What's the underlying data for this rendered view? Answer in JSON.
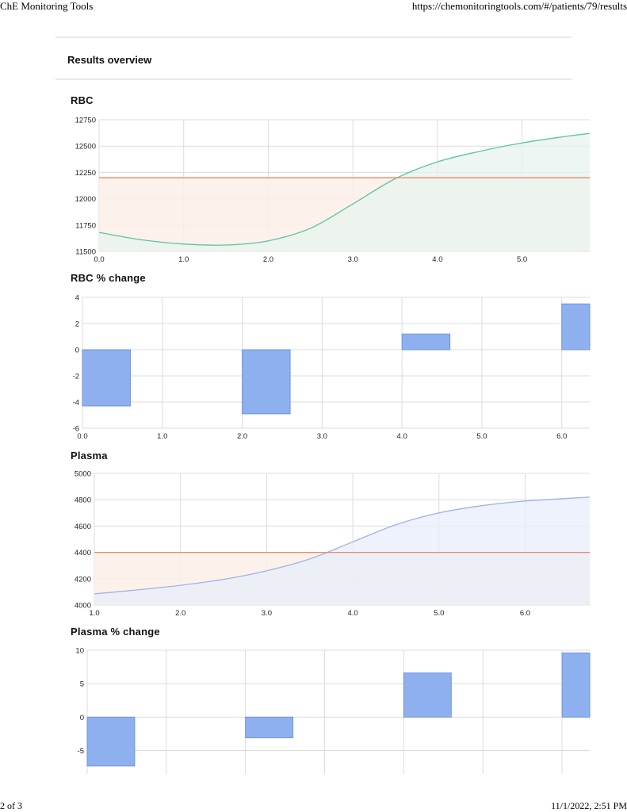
{
  "print_header": {
    "title": "ChE Monitoring Tools",
    "url": "https://chemonitoringtools.com/#/patients/79/results"
  },
  "print_footer": {
    "page": "2 of 3",
    "datetime": "11/1/2022, 2:51 PM"
  },
  "overview": {
    "title": "Results overview"
  },
  "charts": {
    "rbc": {
      "title": "RBC"
    },
    "rbc_change": {
      "title": "RBC % change"
    },
    "plasma": {
      "title": "Plasma"
    },
    "plasma_change": {
      "title": "Plasma % change"
    }
  },
  "colors": {
    "rbc_line": "#5cc4a4",
    "plasma_line": "#9fb2ea",
    "threshold_line": "#e9896b",
    "bar_fill": "#8fb0ef",
    "bar_stroke": "#6f93e6",
    "grid": "#dcdcdc"
  },
  "chart_data": [
    {
      "id": "rbc",
      "type": "area",
      "title": "RBC",
      "xlim": [
        0,
        5.8
      ],
      "ylim": [
        11500,
        12750
      ],
      "xticks": [
        "0.0",
        "1.0",
        "2.0",
        "3.0",
        "4.0",
        "5.0"
      ],
      "yticks": [
        "11500",
        "11750",
        "12000",
        "12250",
        "12500",
        "12750"
      ],
      "threshold": 12200,
      "series": [
        {
          "x": [
            0,
            0.5,
            1,
            1.5,
            2,
            2.5,
            3,
            3.5,
            4,
            4.5,
            5,
            5.5,
            5.8
          ],
          "y": [
            11680,
            11610,
            11570,
            11560,
            11600,
            11720,
            11950,
            12190,
            12350,
            12450,
            12530,
            12590,
            12620
          ]
        }
      ]
    },
    {
      "id": "rbc_change",
      "type": "bar",
      "title": "RBC % change",
      "xlim": [
        0,
        6.35
      ],
      "ylim": [
        -6,
        4
      ],
      "xticks": [
        "0.0",
        "1.0",
        "2.0",
        "3.0",
        "4.0",
        "5.0",
        "6.0"
      ],
      "yticks": [
        "-6",
        "-4",
        "-2",
        "0",
        "2",
        "4"
      ],
      "bars": [
        {
          "x": 0,
          "value": -4.3
        },
        {
          "x": 2,
          "value": -4.9
        },
        {
          "x": 4,
          "value": 1.2
        },
        {
          "x": 6,
          "value": 3.5
        }
      ],
      "bar_width": 0.6
    },
    {
      "id": "plasma",
      "type": "area",
      "title": "Plasma",
      "xlim": [
        1,
        6.75
      ],
      "ylim": [
        4000,
        5000
      ],
      "xticks": [
        "1.0",
        "2.0",
        "3.0",
        "4.0",
        "5.0",
        "6.0"
      ],
      "yticks": [
        "4000",
        "4200",
        "4400",
        "4600",
        "4800",
        "5000"
      ],
      "threshold": 4400,
      "series": [
        {
          "x": [
            1,
            1.5,
            2,
            2.5,
            3,
            3.5,
            4,
            4.5,
            5,
            5.5,
            6,
            6.75
          ],
          "y": [
            4085,
            4115,
            4150,
            4195,
            4260,
            4350,
            4480,
            4610,
            4700,
            4755,
            4790,
            4820
          ]
        }
      ]
    },
    {
      "id": "plasma_change",
      "type": "bar",
      "title": "Plasma % change",
      "xlim": [
        0,
        6.35
      ],
      "ylim": [
        -8.5,
        10
      ],
      "xticks": [],
      "yticks": [
        "-5",
        "0",
        "5",
        "10"
      ],
      "bars": [
        {
          "x": 0,
          "value": -7.3
        },
        {
          "x": 2,
          "value": -3.1
        },
        {
          "x": 4,
          "value": 6.6
        },
        {
          "x": 6,
          "value": 9.6
        }
      ],
      "bar_width": 0.6
    }
  ]
}
